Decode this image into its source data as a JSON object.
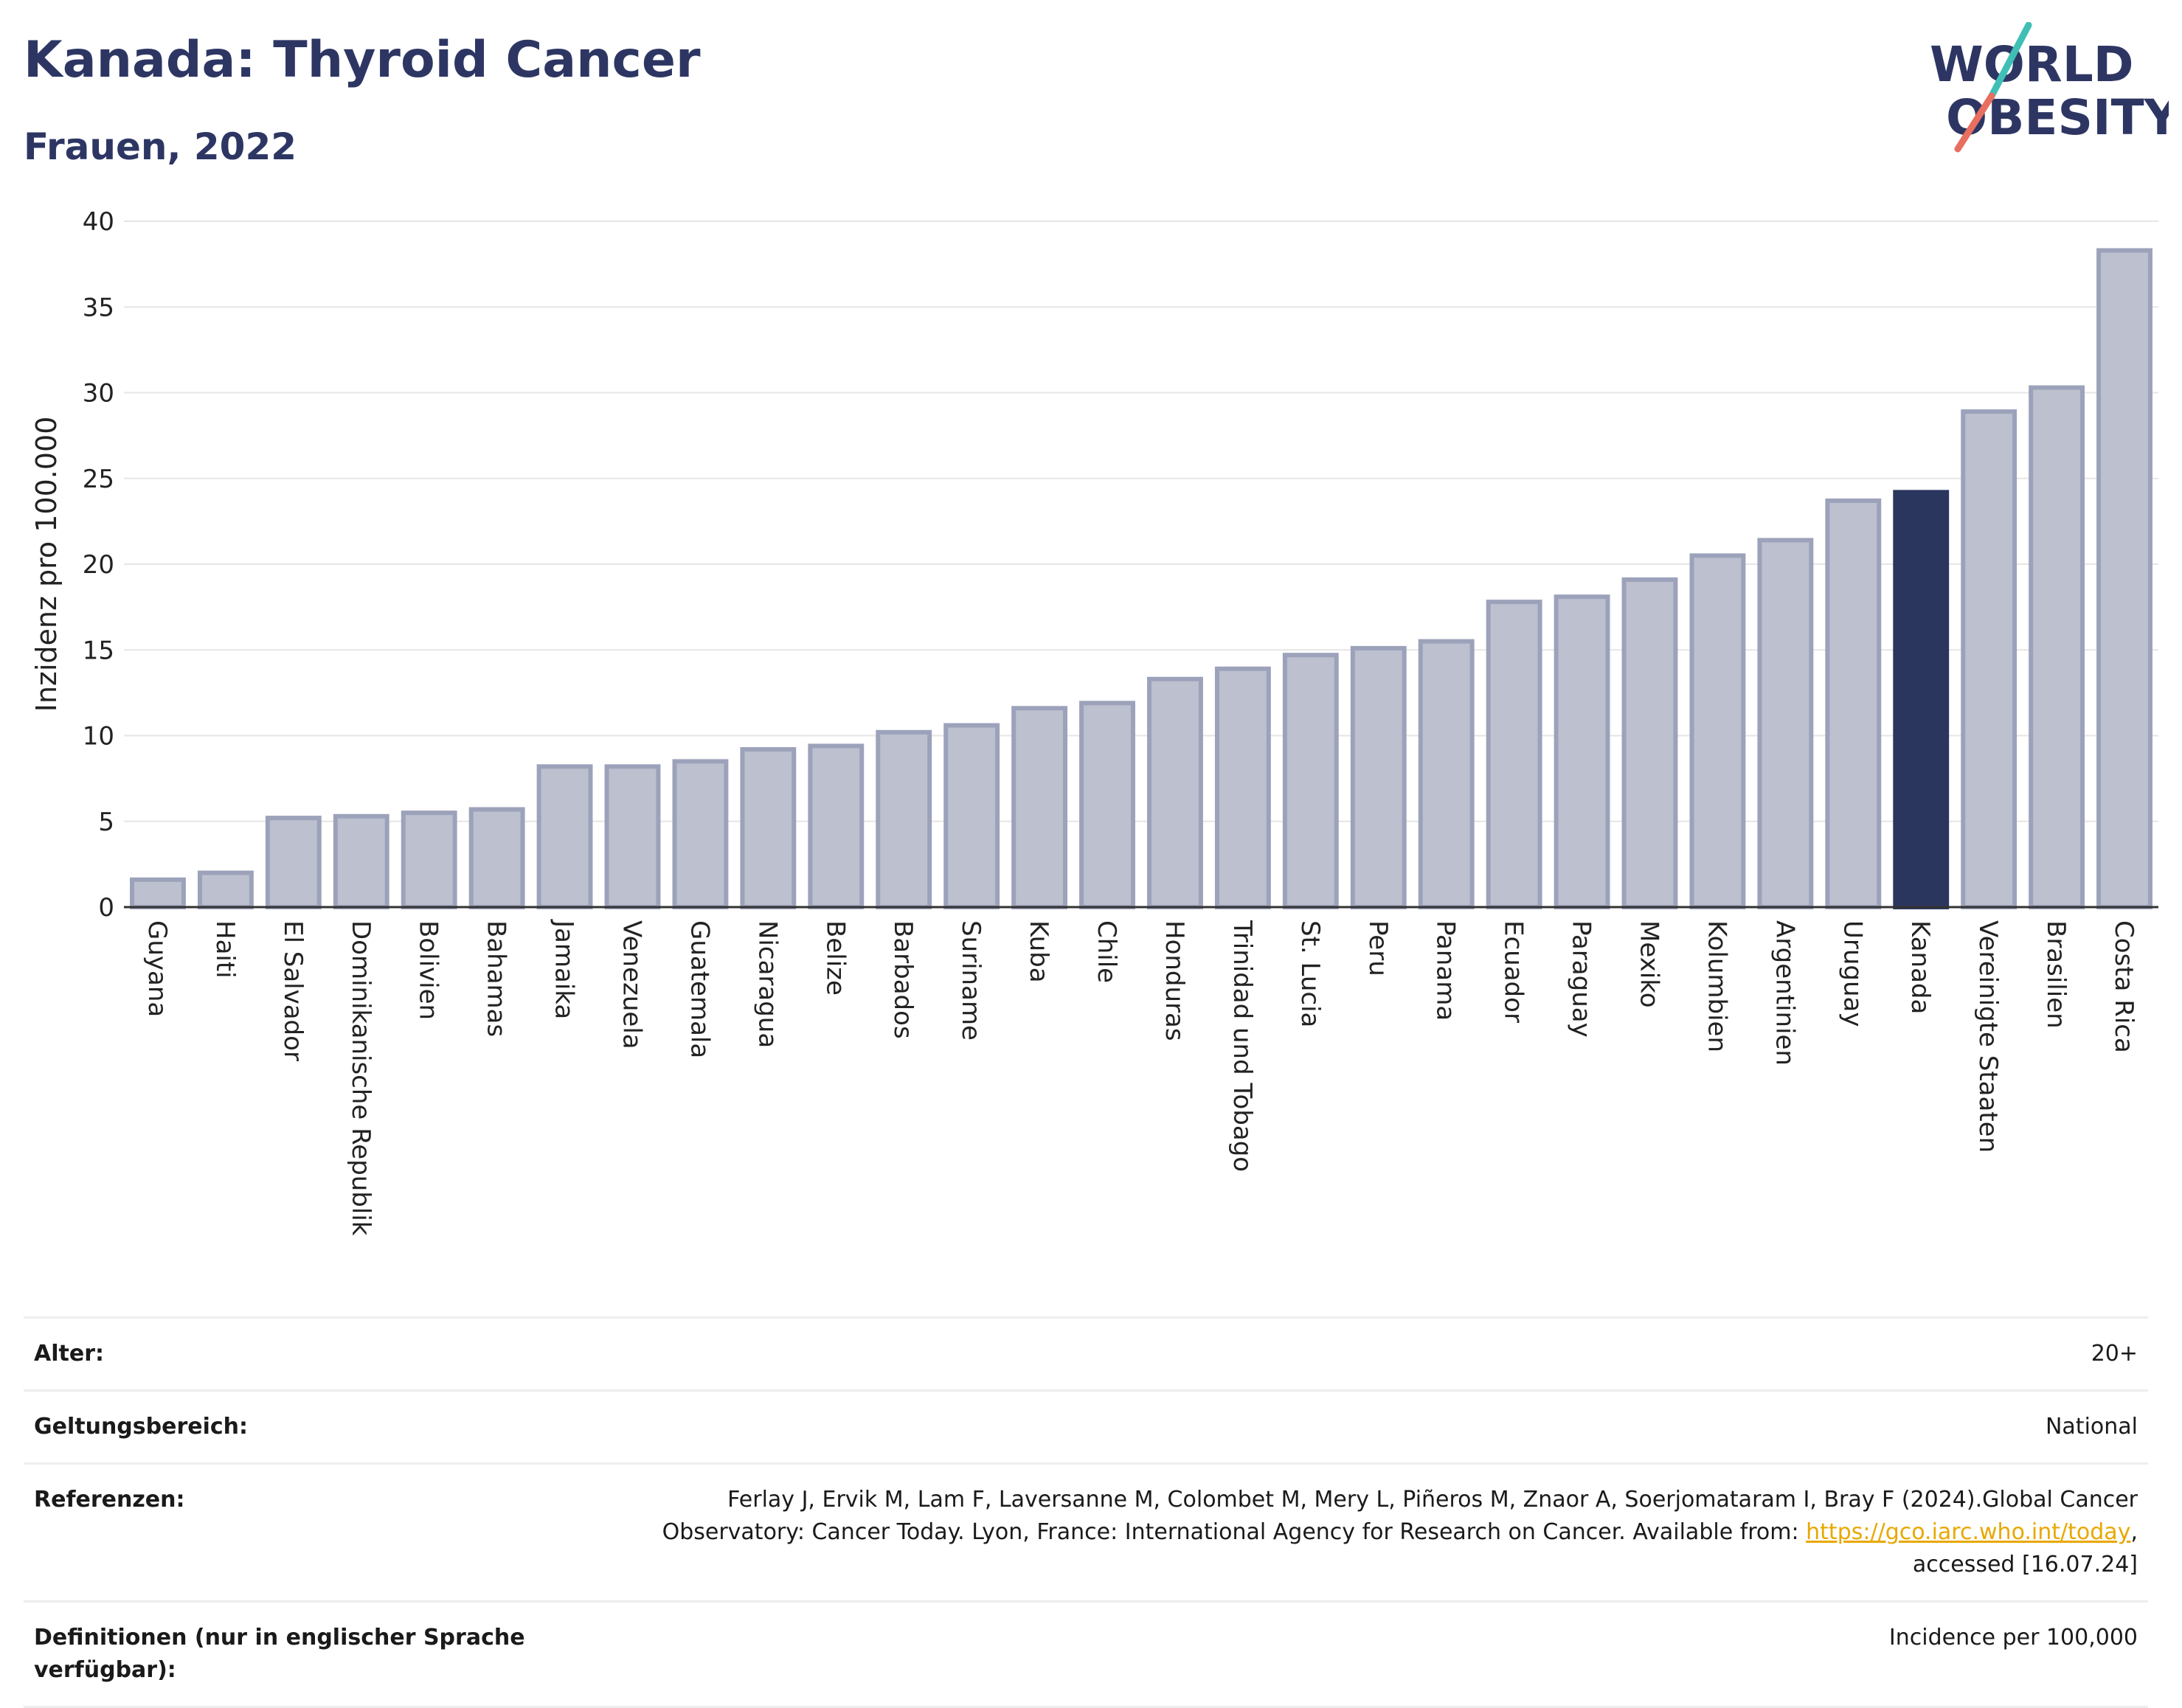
{
  "title": "Kanada: Thyroid Cancer",
  "subtitle": "Frauen, 2022",
  "logo": {
    "line1": "WORLD",
    "line2": "OBESITY"
  },
  "chart_data": {
    "type": "bar",
    "ylabel": "Inzidenz pro 100.000",
    "ylim": [
      0,
      40
    ],
    "yticks": [
      0,
      5,
      10,
      15,
      20,
      25,
      30,
      35,
      40
    ],
    "grid": true,
    "highlight": "Kanada",
    "colors": {
      "bar": "#bcc0cf",
      "bar_border": "#9ca2ba",
      "highlight": "#2b365f",
      "grid": "#e6e6e6",
      "axis": "#333333"
    },
    "categories": [
      "Guyana",
      "Haiti",
      "El Salvador",
      "Dominikanische Republik",
      "Bolivien",
      "Bahamas",
      "Jamaika",
      "Venezuela",
      "Guatemala",
      "Nicaragua",
      "Belize",
      "Barbados",
      "Suriname",
      "Kuba",
      "Chile",
      "Honduras",
      "Trinidad und Tobago",
      "St. Lucia",
      "Peru",
      "Panama",
      "Ecuador",
      "Paraguay",
      "Mexiko",
      "Kolumbien",
      "Argentinien",
      "Uruguay",
      "Kanada",
      "Vereinigte Staaten",
      "Brasilien",
      "Costa Rica"
    ],
    "values": [
      1.6,
      2.0,
      5.2,
      5.3,
      5.5,
      5.7,
      8.2,
      8.2,
      8.5,
      9.2,
      9.4,
      10.2,
      10.6,
      11.6,
      11.9,
      13.3,
      13.9,
      14.7,
      15.1,
      15.5,
      17.8,
      18.1,
      19.1,
      20.5,
      21.4,
      23.7,
      24.2,
      28.9,
      30.3,
      38.3
    ]
  },
  "meta": [
    {
      "label": "Alter:",
      "value": "20+"
    },
    {
      "label": "Geltungsbereich:",
      "value": "National"
    },
    {
      "label": "Referenzen:",
      "value_pre": "Ferlay J, Ervik M, Lam F, Laversanne M, Colombet M, Mery L, Piñeros M, Znaor A, Soerjomataram I, Bray F (2024).Global Cancer Observatory: Cancer Today. Lyon, France: International Agency for Research on Cancer. Available from: ",
      "link": "https://gco.iarc.who.int/today",
      "value_post": ", accessed [16.07.24]"
    },
    {
      "label": "Definitionen (nur in englischer Sprache verfügbar):",
      "value": "Incidence per 100,000"
    }
  ]
}
